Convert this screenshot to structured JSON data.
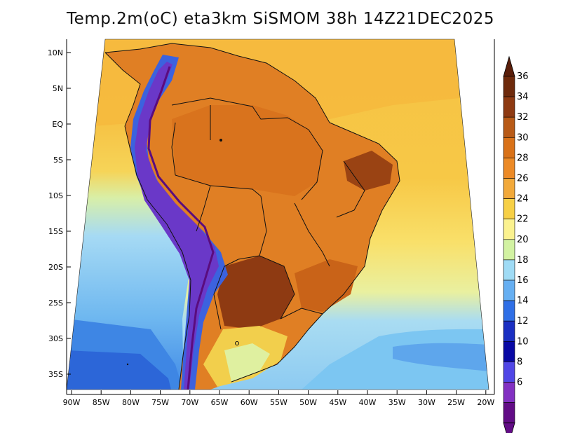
{
  "title": "Temp.2m(oC) eta3km SiSMOM 38h 14Z21DEC2025",
  "lat_labels": [
    "10N",
    "5N",
    "EQ",
    "5S",
    "10S",
    "15S",
    "20S",
    "25S",
    "30S",
    "35S"
  ],
  "lon_labels": [
    "90W",
    "85W",
    "80W",
    "75W",
    "70W",
    "65W",
    "60W",
    "55W",
    "50W",
    "45W",
    "40W",
    "35W",
    "30W",
    "25W",
    "20W"
  ],
  "colorbar": {
    "labels": [
      "36",
      "34",
      "32",
      "30",
      "28",
      "26",
      "24",
      "22",
      "20",
      "18",
      "16",
      "14",
      "12",
      "10",
      "8",
      "6"
    ],
    "colors": [
      "#6e2a0c",
      "#8e3a12",
      "#b85a17",
      "#d97219",
      "#ec8a26",
      "#f2a93a",
      "#f7d046",
      "#fbf28f",
      "#d2f2a2",
      "#9fdbf5",
      "#66aff2",
      "#2f6fe6",
      "#1a2fc2",
      "#0808a4",
      "#5046e6",
      "#8230c2",
      "#620c86"
    ],
    "under_color": "#620c86",
    "over_color": "#5a1e0a"
  },
  "colors": {
    "ocean_north": "#f7c24a",
    "ocean_south": "#72c0f0",
    "land": "#e07f24",
    "highlands": "#3456d8",
    "andes": "#6a38c8"
  }
}
